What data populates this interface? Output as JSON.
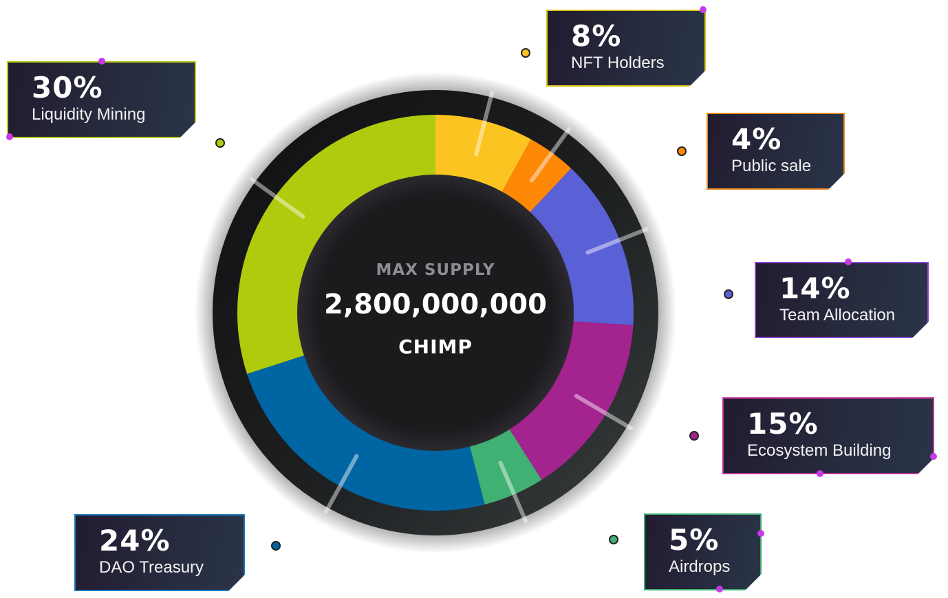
{
  "chart_data": {
    "type": "pie",
    "center": {
      "label": "MAX SUPPLY",
      "value": "2,800,000,000",
      "unit": "CHIMP"
    },
    "slices": [
      {
        "percent": 8,
        "pct_label": "8%",
        "label": "NFT Holders",
        "color": "#fcc420"
      },
      {
        "percent": 4,
        "pct_label": "4%",
        "label": "Public sale",
        "color": "#fd8806"
      },
      {
        "percent": 14,
        "pct_label": "14%",
        "label": "Team Allocation",
        "color": "#5a60d6"
      },
      {
        "percent": 15,
        "pct_label": "15%",
        "label": "Ecosystem Building",
        "color": "#a3238f"
      },
      {
        "percent": 5,
        "pct_label": "5%",
        "label": "Airdrops",
        "color": "#40b073"
      },
      {
        "percent": 24,
        "pct_label": "24%",
        "label": "DAO Treasury",
        "color": "#0065a3"
      },
      {
        "percent": 30,
        "pct_label": "30%",
        "label": "Liquidity Mining",
        "color": "#b0cb0e"
      }
    ]
  }
}
